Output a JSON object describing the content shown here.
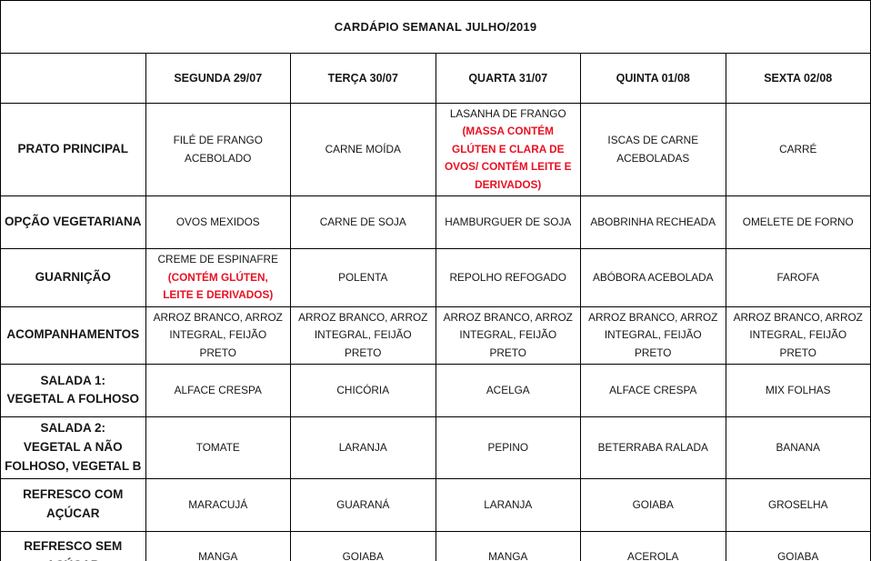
{
  "title": "CARDÁPIO SEMANAL JULHO/2019",
  "colors": {
    "warning_red": "#e81123",
    "border": "#000000",
    "text": "#171717",
    "background": "#ffffff"
  },
  "days": [
    "SEGUNDA 29/07",
    "TERÇA 30/07",
    "QUARTA 31/07",
    "QUINTA 01/08",
    "SEXTA 02/08"
  ],
  "rows": [
    {
      "header": "PRATO PRINCIPAL",
      "tall": true,
      "cells": [
        {
          "text": "FILÉ DE FRANGO ACEBOLADO"
        },
        {
          "text": "CARNE MOÍDA"
        },
        {
          "text": "LASANHA DE FRANGO",
          "warning": "(MASSA CONTÉM GLÚTEN E CLARA DE OVOS/ CONTÉM LEITE E DERIVADOS)"
        },
        {
          "text": "ISCAS DE CARNE ACEBOLADAS"
        },
        {
          "text": "CARRÉ"
        }
      ]
    },
    {
      "header": "OPÇÃO VEGETARIANA",
      "tall": false,
      "cells": [
        {
          "text": "OVOS MEXIDOS"
        },
        {
          "text": "CARNE DE SOJA"
        },
        {
          "text": "HAMBURGUER DE SOJA"
        },
        {
          "text": "ABOBRINHA RECHEADA"
        },
        {
          "text": "OMELETE DE FORNO"
        }
      ]
    },
    {
      "header": "GUARNIÇÃO",
      "tall": false,
      "cells": [
        {
          "text": "CREME DE ESPINAFRE",
          "warning": "(CONTÉM GLÚTEN, LEITE E DERIVADOS)"
        },
        {
          "text": "POLENTA"
        },
        {
          "text": "REPOLHO REFOGADO"
        },
        {
          "text": "ABÓBORA ACEBOLADA"
        },
        {
          "text": "FAROFA"
        }
      ]
    },
    {
      "header": "ACOMPANHAMENTOS",
      "tall": false,
      "cells": [
        {
          "text": "ARROZ BRANCO, ARROZ INTEGRAL, FEIJÃO PRETO"
        },
        {
          "text": "ARROZ BRANCO, ARROZ INTEGRAL, FEIJÃO PRETO"
        },
        {
          "text": "ARROZ BRANCO, ARROZ INTEGRAL, FEIJÃO PRETO"
        },
        {
          "text": "ARROZ BRANCO, ARROZ INTEGRAL, FEIJÃO PRETO"
        },
        {
          "text": "ARROZ BRANCO, ARROZ INTEGRAL, FEIJÃO PRETO"
        }
      ]
    },
    {
      "header": "SALADA 1:\nVEGETAL A FOLHOSO",
      "tall": false,
      "cells": [
        {
          "text": "ALFACE CRESPA"
        },
        {
          "text": "CHICÓRIA"
        },
        {
          "text": "ACELGA"
        },
        {
          "text": "ALFACE CRESPA"
        },
        {
          "text": "MIX FOLHAS"
        }
      ]
    },
    {
      "header": "SALADA 2:\nVEGETAL A NÃO\nFOLHOSO, VEGETAL B",
      "tall": false,
      "cells": [
        {
          "text": "TOMATE"
        },
        {
          "text": "LARANJA"
        },
        {
          "text": "PEPINO"
        },
        {
          "text": "BETERRABA RALADA"
        },
        {
          "text": "BANANA"
        }
      ]
    },
    {
      "header": "REFRESCO COM AÇÚCAR",
      "tall": false,
      "cells": [
        {
          "text": "MARACUJÁ"
        },
        {
          "text": "GUARANÁ"
        },
        {
          "text": "LARANJA"
        },
        {
          "text": "GOIABA"
        },
        {
          "text": "GROSELHA"
        }
      ]
    },
    {
      "header": "REFRESCO SEM AÇÚCAR",
      "tall": false,
      "cells": [
        {
          "text": "MANGA"
        },
        {
          "text": "GOIABA"
        },
        {
          "text": "MANGA"
        },
        {
          "text": "ACEROLA"
        },
        {
          "text": "GOIABA"
        }
      ]
    }
  ]
}
